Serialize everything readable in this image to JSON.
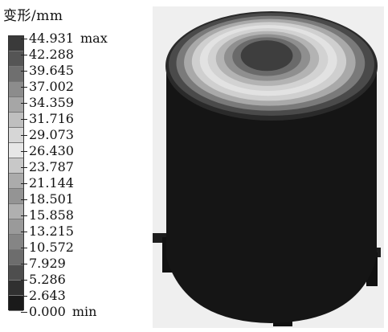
{
  "legend": {
    "title": "变形/mm",
    "max_suffix": "max",
    "min_suffix": "min",
    "levels": [
      {
        "value": "44.931",
        "color": "#3a3a3a"
      },
      {
        "value": "42.288",
        "color": "#555555"
      },
      {
        "value": "39.645",
        "color": "#6f6f6f"
      },
      {
        "value": "37.002",
        "color": "#8c8c8c"
      },
      {
        "value": "34.359",
        "color": "#a6a6a6"
      },
      {
        "value": "31.716",
        "color": "#bfbfbf"
      },
      {
        "value": "29.073",
        "color": "#d6d6d6"
      },
      {
        "value": "26.430",
        "color": "#e6e6e6"
      },
      {
        "value": "23.787",
        "color": "#c8c8c8"
      },
      {
        "value": "21.144",
        "color": "#ababab"
      },
      {
        "value": "18.501",
        "color": "#949494"
      },
      {
        "value": "15.858",
        "color": "#b0b0b0"
      },
      {
        "value": "13.215",
        "color": "#9a9a9a"
      },
      {
        "value": "10.572",
        "color": "#858585"
      },
      {
        "value": "7.929",
        "color": "#6d6d6d"
      },
      {
        "value": "5.286",
        "color": "#4e4e4e"
      },
      {
        "value": "2.643",
        "color": "#303030"
      },
      {
        "value": "0.000",
        "color": "#1a1a1a"
      }
    ]
  },
  "model": {
    "background": "#efefef",
    "body_color": "#151515",
    "lid_rings": [
      "#4a4a4a",
      "#7a7a7a",
      "#a9a9a9",
      "#cfcfcf",
      "#e2e2e2",
      "#d2d2d2",
      "#b3b3b3",
      "#8f8f8f",
      "#6a6a6a",
      "#3e3e3e"
    ]
  }
}
